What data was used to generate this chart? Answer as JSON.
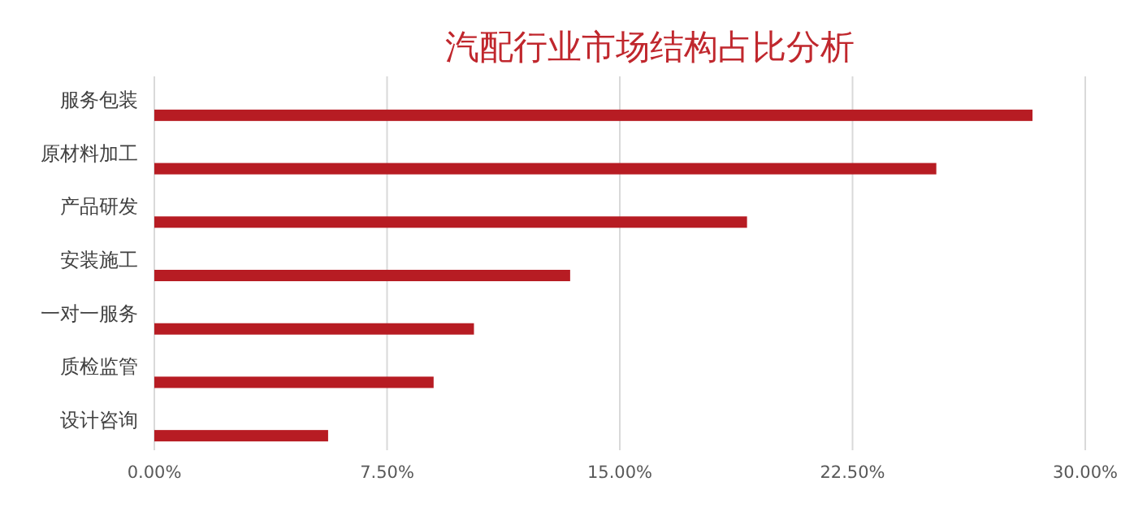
{
  "chart_data": {
    "type": "bar",
    "orientation": "horizontal",
    "title": "汽配行业市场结构占比分析",
    "categories": [
      "服务包装",
      "原材料加工",
      "产品研发",
      "安装施工",
      "一对一服务",
      "质检监管",
      "设计咨询"
    ],
    "values": [
      28.3,
      25.2,
      19.1,
      13.4,
      10.3,
      9.0,
      5.6
    ],
    "color": "#b71c23",
    "xlim": [
      0,
      30
    ],
    "xticks": [
      {
        "value": 0,
        "label": "0.00%"
      },
      {
        "value": 7.5,
        "label": "7.50%"
      },
      {
        "value": 15,
        "label": "15.00%"
      },
      {
        "value": 22.5,
        "label": "22.50%"
      },
      {
        "value": 30,
        "label": "30.00%"
      }
    ],
    "grid": "x"
  }
}
